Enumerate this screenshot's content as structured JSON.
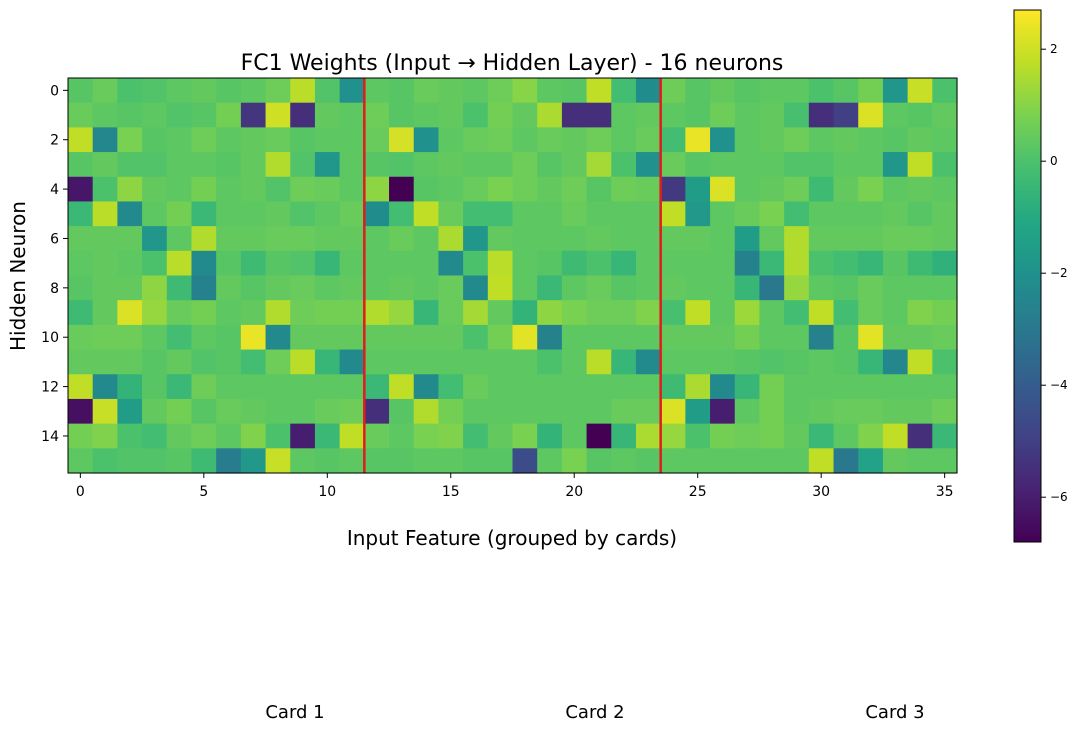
{
  "chart_data": {
    "type": "heatmap",
    "title": "FC1 Weights (Input → Hidden Layer) - 16 neurons",
    "xlabel": "Input Feature (grouped by cards)",
    "ylabel": "Hidden Neuron",
    "colormap": "viridis",
    "value_range": [
      -6.8,
      2.7
    ],
    "x_ticks": [
      0,
      5,
      10,
      15,
      20,
      25,
      30,
      35
    ],
    "y_ticks": [
      0,
      2,
      4,
      6,
      8,
      10,
      12,
      14
    ],
    "colorbar_ticks": [
      2,
      0,
      -2,
      -4,
      -6
    ],
    "colorbar_tick_labels": [
      "2",
      "0",
      "−2",
      "−4",
      "−6"
    ],
    "separators": [
      11.5,
      23.5
    ],
    "separator_color": "#e41a1c",
    "group_labels": [
      "Card 1",
      "Card 2",
      "Card 3"
    ],
    "values": [
      [
        0.2,
        0.5,
        0.0,
        0.1,
        0.3,
        0.4,
        0.2,
        0.3,
        0.6,
        1.7,
        0.1,
        -2.0,
        0.3,
        0.2,
        0.5,
        0.4,
        0.3,
        0.6,
        1.0,
        0.3,
        0.2,
        1.8,
        -0.2,
        -2.2,
        0.6,
        0.2,
        0.4,
        0.2,
        0.3,
        0.3,
        0.0,
        0.2,
        0.7,
        -1.8,
        1.9,
        0.0
      ],
      [
        0.5,
        0.3,
        0.2,
        0.3,
        0.1,
        0.2,
        0.7,
        -5.3,
        2.0,
        -5.5,
        0.4,
        0.3,
        0.6,
        0.2,
        0.3,
        0.4,
        0.0,
        0.7,
        0.4,
        1.5,
        -5.5,
        -5.5,
        0.3,
        0.4,
        0.3,
        0.2,
        0.6,
        0.3,
        0.4,
        -0.1,
        -5.5,
        -5.0,
        2.2,
        0.3,
        0.2,
        0.4
      ],
      [
        1.8,
        -2.4,
        0.8,
        0.2,
        0.3,
        0.6,
        0.3,
        0.4,
        0.5,
        0.2,
        0.3,
        0.3,
        0.5,
        2.1,
        -2.0,
        0.3,
        0.5,
        0.6,
        0.3,
        0.5,
        0.4,
        0.6,
        0.3,
        0.5,
        -0.2,
        2.4,
        -2.0,
        0.3,
        0.4,
        0.6,
        0.3,
        0.4,
        0.3,
        0.2,
        0.4,
        0.3
      ],
      [
        0.2,
        0.4,
        0.1,
        0.1,
        0.3,
        0.3,
        0.2,
        0.4,
        1.6,
        0.1,
        -1.8,
        0.3,
        0.2,
        0.1,
        0.3,
        0.4,
        0.3,
        0.3,
        0.6,
        0.2,
        0.4,
        1.4,
        0.0,
        -2.0,
        0.5,
        0.2,
        0.3,
        0.3,
        0.3,
        0.1,
        0.1,
        0.3,
        0.3,
        -1.8,
        1.8,
        0.0
      ],
      [
        -6.2,
        0.0,
        1.1,
        0.4,
        0.3,
        0.7,
        0.3,
        0.4,
        0.1,
        0.6,
        0.5,
        0.3,
        1.1,
        -6.8,
        0.2,
        0.3,
        0.5,
        0.8,
        0.6,
        0.4,
        0.6,
        0.2,
        0.6,
        0.5,
        -5.2,
        -1.5,
        2.2,
        0.3,
        0.4,
        0.6,
        -0.3,
        0.4,
        0.8,
        0.3,
        0.4,
        0.3
      ],
      [
        -0.4,
        1.7,
        -2.3,
        0.3,
        0.7,
        -0.4,
        0.3,
        0.3,
        0.4,
        0.1,
        0.3,
        0.5,
        -2.2,
        -0.2,
        1.8,
        0.5,
        -0.2,
        -0.2,
        0.3,
        0.3,
        0.5,
        0.3,
        0.3,
        0.3,
        1.8,
        -1.7,
        0.3,
        0.5,
        0.8,
        -0.2,
        0.3,
        0.3,
        0.3,
        0.4,
        0.2,
        0.4
      ],
      [
        0.4,
        0.4,
        0.4,
        -1.8,
        0.3,
        1.6,
        0.4,
        0.4,
        0.5,
        0.5,
        0.4,
        0.4,
        0.3,
        0.5,
        0.3,
        1.5,
        -1.8,
        0.4,
        0.3,
        0.3,
        0.3,
        0.4,
        0.3,
        0.3,
        0.4,
        0.4,
        0.3,
        -1.5,
        0.4,
        1.6,
        0.4,
        0.4,
        0.4,
        0.5,
        0.5,
        0.4
      ],
      [
        0.3,
        0.4,
        0.3,
        0.0,
        1.7,
        -2.3,
        0.2,
        -0.3,
        0.2,
        0.1,
        -0.5,
        0.3,
        0.3,
        0.3,
        0.3,
        -2.3,
        0.0,
        1.7,
        0.3,
        0.2,
        -0.3,
        0.0,
        -0.5,
        0.3,
        0.3,
        0.3,
        0.3,
        -2.6,
        -0.4,
        1.6,
        0.0,
        -0.2,
        -0.5,
        0.2,
        -0.3,
        -0.7
      ],
      [
        0.2,
        0.4,
        0.4,
        1.1,
        -0.3,
        -2.6,
        0.4,
        0.2,
        0.4,
        0.5,
        0.3,
        0.4,
        0.3,
        0.4,
        0.3,
        0.5,
        -2.3,
        1.8,
        0.3,
        -0.4,
        0.3,
        0.5,
        0.2,
        0.3,
        0.4,
        0.3,
        0.3,
        -0.5,
        -3.0,
        1.2,
        0.3,
        0.2,
        0.5,
        0.3,
        0.3,
        0.3
      ],
      [
        -0.3,
        0.4,
        2.2,
        1.2,
        0.5,
        0.7,
        0.3,
        0.4,
        1.6,
        0.6,
        0.7,
        0.7,
        1.6,
        1.2,
        -0.5,
        0.5,
        1.4,
        0.4,
        -0.6,
        1.1,
        0.8,
        0.6,
        0.6,
        0.9,
        -0.1,
        1.8,
        0.3,
        1.3,
        0.3,
        -0.2,
        1.8,
        -0.2,
        0.5,
        0.3,
        0.9,
        0.7
      ],
      [
        0.5,
        0.6,
        0.6,
        0.3,
        -0.2,
        0.3,
        0.2,
        2.4,
        -2.3,
        0.4,
        0.4,
        0.4,
        0.4,
        0.4,
        0.4,
        0.4,
        0.0,
        0.7,
        2.3,
        -2.6,
        0.3,
        0.3,
        0.3,
        0.3,
        0.4,
        0.4,
        0.4,
        0.7,
        0.3,
        0.3,
        -2.6,
        0.2,
        2.3,
        0.4,
        0.4,
        0.5
      ],
      [
        0.4,
        0.4,
        0.4,
        0.2,
        0.4,
        0.1,
        0.2,
        -0.2,
        0.6,
        1.7,
        -0.5,
        -2.3,
        0.3,
        0.3,
        0.3,
        0.3,
        0.3,
        0.3,
        0.3,
        0.0,
        0.3,
        1.7,
        -0.5,
        -2.3,
        0.3,
        0.3,
        0.3,
        0.2,
        0.1,
        0.2,
        0.3,
        0.2,
        -0.5,
        -2.4,
        1.8,
        0.0
      ],
      [
        1.8,
        -2.3,
        -0.6,
        0.2,
        -0.4,
        0.6,
        0.3,
        0.3,
        0.3,
        0.3,
        0.3,
        0.3,
        -0.4,
        1.8,
        -2.3,
        -0.2,
        0.5,
        0.3,
        0.3,
        0.3,
        0.3,
        0.3,
        0.3,
        0.3,
        -0.3,
        1.5,
        -2.3,
        -0.5,
        0.7,
        0.3,
        0.3,
        0.3,
        0.3,
        0.3,
        0.3,
        0.3
      ],
      [
        -6.4,
        1.9,
        -1.5,
        0.4,
        0.7,
        0.2,
        0.5,
        0.4,
        0.3,
        0.3,
        0.5,
        0.6,
        -5.5,
        0.2,
        1.6,
        0.7,
        0.3,
        0.3,
        0.3,
        0.3,
        0.3,
        0.3,
        0.5,
        0.5,
        2.2,
        -1.5,
        -6.0,
        0.3,
        0.7,
        0.3,
        0.4,
        0.5,
        0.5,
        0.4,
        0.4,
        0.6
      ],
      [
        0.7,
        0.9,
        0.0,
        -0.2,
        0.4,
        0.6,
        0.3,
        0.9,
        0.0,
        -6.0,
        -0.4,
        1.8,
        0.5,
        0.3,
        0.8,
        0.9,
        -0.2,
        0.4,
        0.8,
        -0.6,
        0.3,
        -6.8,
        -0.5,
        1.5,
        1.2,
        0.0,
        0.7,
        0.6,
        0.7,
        0.4,
        -0.4,
        0.3,
        0.9,
        1.8,
        -5.5,
        -0.4
      ],
      [
        0.3,
        0.0,
        0.1,
        0.1,
        0.2,
        -0.3,
        -2.8,
        -1.7,
        1.9,
        0.3,
        0.2,
        0.3,
        0.2,
        0.2,
        0.3,
        0.3,
        0.2,
        0.2,
        -4.6,
        0.3,
        0.8,
        0.2,
        0.3,
        0.2,
        0.3,
        0.3,
        0.3,
        0.3,
        0.3,
        0.3,
        1.8,
        -3.0,
        -1.3,
        0.4,
        0.3,
        0.3
      ]
    ]
  }
}
